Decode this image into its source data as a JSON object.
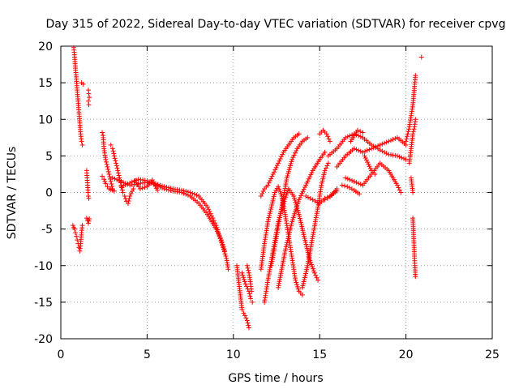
{
  "chart_data": {
    "type": "scatter",
    "title": "Day 315 of 2022, Sidereal Day-to-day VTEC variation (SDTVAR) for receiver cpvg",
    "xlabel": "GPS time / hours",
    "ylabel": "SDTVAR / TECUs",
    "xlim": [
      0,
      25
    ],
    "ylim": [
      -20,
      20
    ],
    "xticks": [
      "0",
      "5",
      "10",
      "15",
      "20",
      "25"
    ],
    "yticks": [
      "20",
      "15",
      "10",
      "5",
      "0",
      "-5",
      "-10",
      "-15",
      "-20"
    ],
    "grid": true,
    "marker": "+",
    "series": [
      {
        "name": "SDTVAR",
        "color": "#ff0000",
        "segments": [
          [
            [
              0.75,
              19.8
            ],
            [
              0.8,
              18.5
            ],
            [
              0.85,
              17
            ],
            [
              0.9,
              15.5
            ],
            [
              0.95,
              14
            ],
            [
              1.0,
              12.5
            ],
            [
              1.05,
              11
            ],
            [
              1.1,
              9.5
            ],
            [
              1.15,
              8
            ],
            [
              1.2,
              7
            ],
            [
              1.25,
              6.5
            ]
          ],
          [
            [
              0.7,
              -4.5
            ],
            [
              0.75,
              -4.8
            ],
            [
              0.8,
              -5
            ],
            [
              0.85,
              -5.5
            ],
            [
              0.9,
              -6
            ],
            [
              0.95,
              -6.5
            ],
            [
              1.0,
              -7
            ],
            [
              1.05,
              -7.5
            ],
            [
              1.1,
              -8
            ],
            [
              1.15,
              -7
            ],
            [
              1.2,
              -5.5
            ],
            [
              1.25,
              -4.5
            ]
          ],
          [
            [
              1.2,
              15
            ],
            [
              1.3,
              14.8
            ]
          ],
          [
            [
              1.6,
              14
            ],
            [
              1.62,
              13.5
            ],
            [
              1.65,
              13
            ],
            [
              1.6,
              12.5
            ],
            [
              1.62,
              12
            ]
          ],
          [
            [
              1.5,
              3
            ],
            [
              1.52,
              2
            ],
            [
              1.55,
              1
            ],
            [
              1.58,
              0
            ],
            [
              1.6,
              -0.5
            ],
            [
              1.62,
              -0.8
            ]
          ],
          [
            [
              1.5,
              -3.5
            ],
            [
              1.55,
              -3.8
            ],
            [
              1.6,
              -4.2
            ],
            [
              1.65,
              -3.6
            ]
          ],
          [
            [
              2.4,
              8.2
            ],
            [
              2.45,
              7.8
            ],
            [
              2.5,
              6
            ],
            [
              2.6,
              4.5
            ],
            [
              2.7,
              3.5
            ],
            [
              2.8,
              2.5
            ],
            [
              2.9,
              1.5
            ],
            [
              3.0,
              0.5
            ],
            [
              3.1,
              0.2
            ]
          ],
          [
            [
              2.4,
              2.2
            ],
            [
              2.5,
              1.8
            ],
            [
              2.6,
              1.2
            ],
            [
              2.7,
              0.8
            ],
            [
              2.8,
              0.5
            ],
            [
              2.9,
              0.4
            ],
            [
              3.0,
              0.3
            ]
          ],
          [
            [
              2.9,
              6.5
            ],
            [
              3.0,
              6
            ],
            [
              3.1,
              5
            ],
            [
              3.2,
              4
            ],
            [
              3.3,
              3
            ],
            [
              3.4,
              2
            ],
            [
              3.5,
              1
            ],
            [
              3.6,
              0
            ],
            [
              3.7,
              -0.5
            ],
            [
              3.8,
              -1.2
            ],
            [
              3.9,
              -1.5
            ],
            [
              4.0,
              -0.5
            ],
            [
              4.2,
              0.5
            ]
          ],
          [
            [
              3.0,
              2.0
            ],
            [
              3.5,
              1.5
            ],
            [
              4.0,
              1.0
            ],
            [
              4.5,
              1.2
            ],
            [
              5.0,
              1.4
            ],
            [
              5.5,
              1.2
            ],
            [
              6.0,
              0.8
            ],
            [
              6.5,
              0.5
            ],
            [
              7.0,
              0.3
            ],
            [
              7.5,
              0.0
            ],
            [
              8.0,
              -0.5
            ],
            [
              8.5,
              -2
            ],
            [
              8.8,
              -3.5
            ],
            [
              9.0,
              -4.5
            ],
            [
              9.2,
              -6
            ],
            [
              9.4,
              -7.5
            ],
            [
              9.6,
              -9
            ],
            [
              9.7,
              -10.5
            ]
          ],
          [
            [
              3.5,
              0.8
            ],
            [
              4.0,
              1.3
            ],
            [
              4.5,
              1.8
            ],
            [
              5.0,
              1.6
            ],
            [
              5.5,
              1.0
            ],
            [
              6.0,
              0.5
            ],
            [
              6.5,
              0.2
            ],
            [
              7.0,
              0.0
            ],
            [
              7.5,
              -0.5
            ],
            [
              8.0,
              -1.5
            ],
            [
              8.5,
              -3
            ],
            [
              9.0,
              -5
            ],
            [
              9.3,
              -6.5
            ],
            [
              9.5,
              -8
            ]
          ],
          [
            [
              4.3,
              1.6
            ],
            [
              4.6,
              0.5
            ],
            [
              5.0,
              0.8
            ],
            [
              5.3,
              1.7
            ],
            [
              5.6,
              0.3
            ]
          ],
          [
            [
              10.2,
              -10
            ],
            [
              10.3,
              -12
            ],
            [
              10.4,
              -14
            ],
            [
              10.5,
              -16
            ],
            [
              10.6,
              -16.5
            ],
            [
              10.8,
              -17.5
            ],
            [
              10.9,
              -18.5
            ]
          ],
          [
            [
              10.5,
              -11
            ],
            [
              10.7,
              -12.5
            ],
            [
              10.9,
              -13.5
            ],
            [
              11.0,
              -14.5
            ],
            [
              11.1,
              -15
            ]
          ],
          [
            [
              10.8,
              -10
            ],
            [
              10.9,
              -11
            ],
            [
              11.0,
              -12.5
            ],
            [
              11.05,
              -13.5
            ]
          ],
          [
            [
              11.6,
              -10.5
            ],
            [
              11.8,
              -7
            ],
            [
              12.0,
              -4
            ],
            [
              12.2,
              -2
            ],
            [
              12.4,
              0
            ],
            [
              12.6,
              0.8
            ],
            [
              12.8,
              -0.5
            ],
            [
              13.0,
              -3
            ],
            [
              13.2,
              -6
            ],
            [
              13.4,
              -9
            ],
            [
              13.6,
              -12
            ],
            [
              13.8,
              -13.5
            ],
            [
              14.0,
              -14
            ]
          ],
          [
            [
              11.8,
              -15
            ],
            [
              12.0,
              -12
            ],
            [
              12.3,
              -8
            ],
            [
              12.6,
              -4
            ],
            [
              12.9,
              -1.5
            ],
            [
              13.2,
              0.5
            ],
            [
              13.5,
              -0.5
            ],
            [
              13.8,
              -3
            ],
            [
              14.1,
              -6
            ],
            [
              14.4,
              -9
            ],
            [
              14.7,
              -11
            ],
            [
              14.9,
              -12
            ]
          ],
          [
            [
              11.6,
              -0.5
            ],
            [
              11.8,
              0.5
            ],
            [
              12.0,
              1.0
            ],
            [
              12.3,
              2.5
            ],
            [
              12.6,
              4
            ],
            [
              12.9,
              5.5
            ],
            [
              13.2,
              6.5
            ],
            [
              13.5,
              7.5
            ],
            [
              13.8,
              8.0
            ]
          ],
          [
            [
              12.2,
              -10
            ],
            [
              12.5,
              -6
            ],
            [
              12.8,
              -2
            ],
            [
              13.1,
              2
            ],
            [
              13.4,
              4.5
            ],
            [
              13.7,
              6
            ],
            [
              14.0,
              7
            ],
            [
              14.3,
              7.5
            ]
          ],
          [
            [
              12.6,
              -13
            ],
            [
              13.0,
              -8
            ],
            [
              13.4,
              -4
            ],
            [
              13.8,
              -1
            ],
            [
              14.2,
              1
            ],
            [
              14.6,
              3
            ],
            [
              15.0,
              4.5
            ],
            [
              15.3,
              5.5
            ]
          ],
          [
            [
              14.0,
              -13
            ],
            [
              14.3,
              -10
            ],
            [
              14.6,
              -6
            ],
            [
              14.9,
              -2
            ],
            [
              15.1,
              1
            ],
            [
              15.3,
              3
            ],
            [
              15.5,
              4
            ]
          ],
          [
            [
              15.0,
              8
            ],
            [
              15.2,
              8.5
            ],
            [
              15.4,
              8
            ],
            [
              15.6,
              7
            ]
          ],
          [
            [
              14.2,
              -0.5
            ],
            [
              14.6,
              -1
            ],
            [
              15.0,
              -1.5
            ],
            [
              15.3,
              -0.8
            ],
            [
              15.6,
              -0.5
            ],
            [
              16.0,
              0.2
            ]
          ],
          [
            [
              15.3,
              -1
            ],
            [
              15.6,
              -0.6
            ],
            [
              16.0,
              0.5
            ]
          ],
          [
            [
              15.5,
              5
            ],
            [
              16.0,
              6
            ],
            [
              16.5,
              7.5
            ],
            [
              17.0,
              8
            ],
            [
              17.5,
              7.5
            ],
            [
              18.0,
              6.5
            ],
            [
              18.5,
              5.8
            ],
            [
              19.0,
              5.2
            ],
            [
              19.5,
              5.0
            ],
            [
              20.0,
              4.5
            ]
          ],
          [
            [
              16.0,
              3.5
            ],
            [
              16.5,
              5
            ],
            [
              17.0,
              6
            ],
            [
              17.5,
              5.5
            ],
            [
              18.0,
              6
            ],
            [
              18.5,
              6.5
            ],
            [
              19.0,
              7
            ],
            [
              19.5,
              7.5
            ],
            [
              20.0,
              6.5
            ]
          ],
          [
            [
              16.5,
              2
            ],
            [
              17.0,
              1.5
            ],
            [
              17.5,
              1
            ],
            [
              18.0,
              2.5
            ],
            [
              18.5,
              4
            ],
            [
              19.0,
              3
            ],
            [
              19.5,
              1
            ],
            [
              19.7,
              0
            ]
          ],
          [
            [
              16.3,
              1
            ],
            [
              16.6,
              0.8
            ],
            [
              17.0,
              0.3
            ],
            [
              17.3,
              -0.2
            ]
          ],
          [
            [
              16.8,
              7
            ],
            [
              17.2,
              8.5
            ],
            [
              17.5,
              8.2
            ]
          ],
          [
            [
              17.6,
              5
            ],
            [
              18.0,
              3
            ],
            [
              18.2,
              2.5
            ]
          ],
          [
            [
              20.0,
              7
            ],
            [
              20.1,
              8
            ],
            [
              20.2,
              9
            ],
            [
              20.3,
              10.5
            ],
            [
              20.4,
              12
            ],
            [
              20.5,
              14.5
            ],
            [
              20.55,
              16
            ]
          ],
          [
            [
              20.2,
              4
            ],
            [
              20.3,
              6
            ],
            [
              20.4,
              8
            ],
            [
              20.5,
              9
            ],
            [
              20.55,
              10
            ]
          ],
          [
            [
              20.3,
              2
            ],
            [
              20.4,
              0
            ]
          ],
          [
            [
              20.9,
              18.5
            ]
          ],
          [
            [
              20.4,
              -3.5
            ],
            [
              20.45,
              -6.3
            ],
            [
              20.5,
              -9
            ],
            [
              20.52,
              -10
            ],
            [
              20.55,
              -11.5
            ]
          ]
        ]
      }
    ]
  }
}
